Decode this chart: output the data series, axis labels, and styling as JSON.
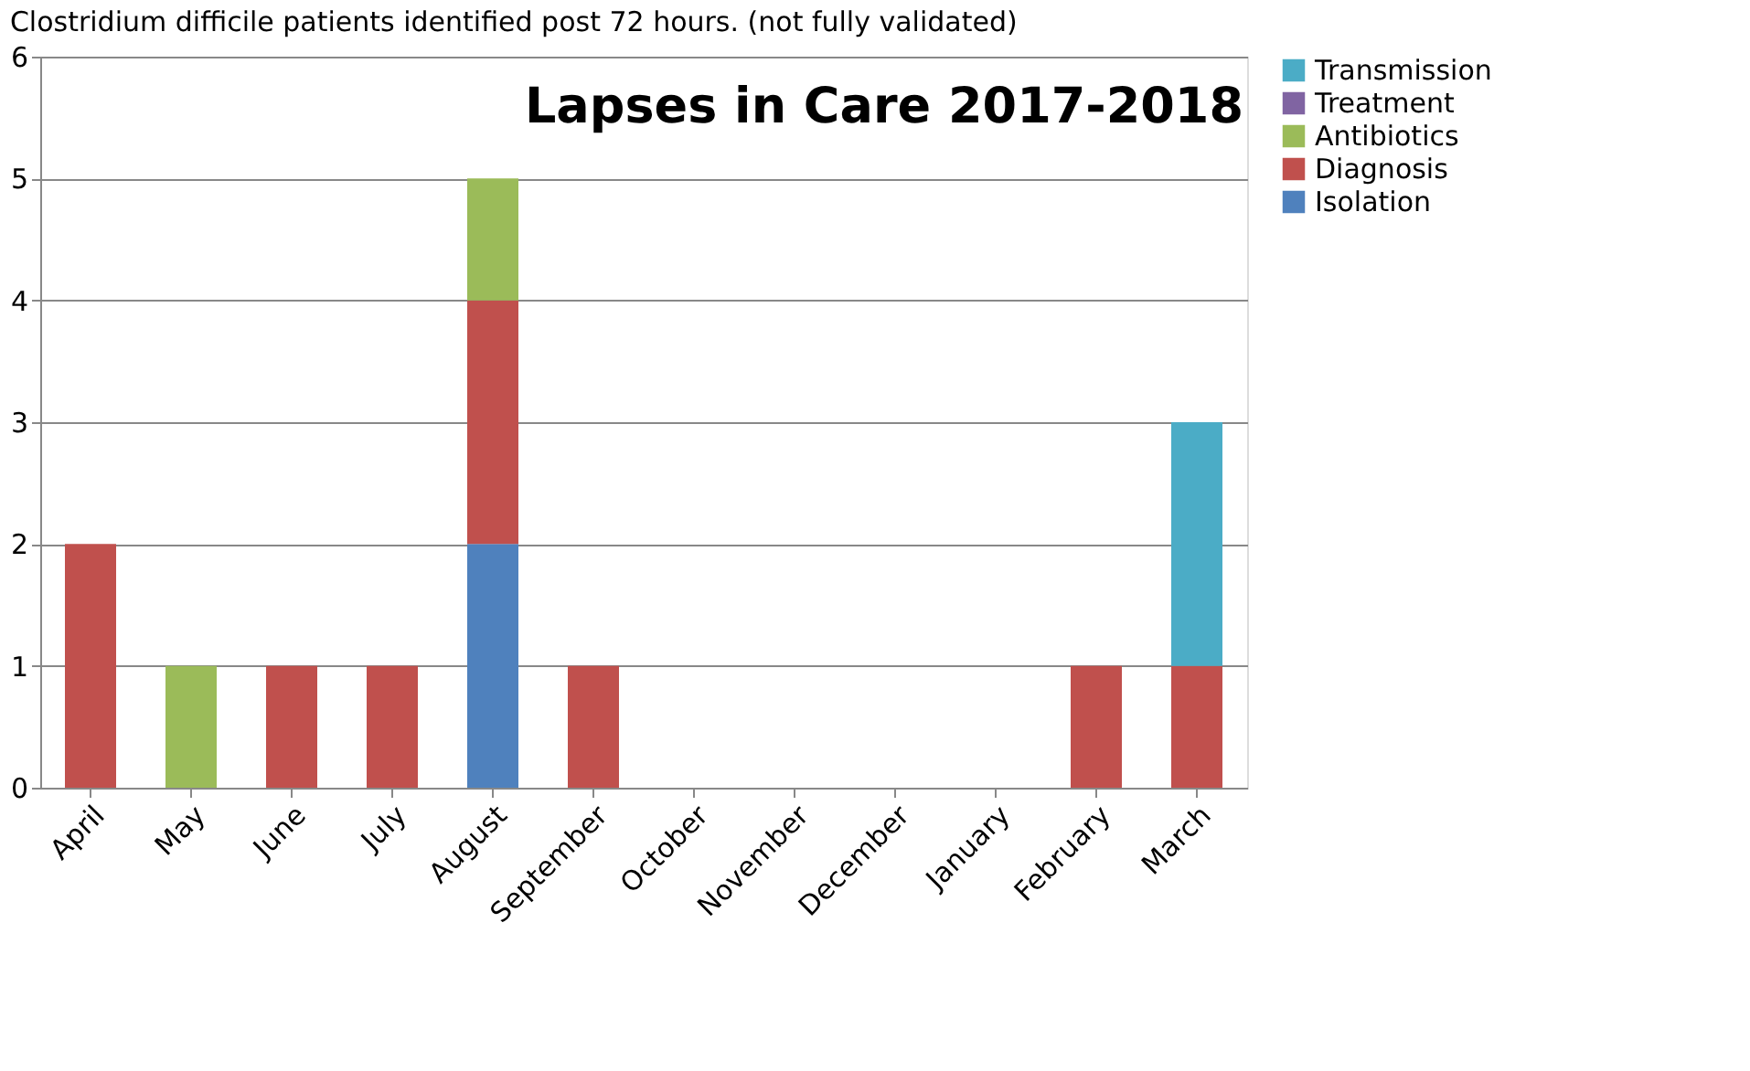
{
  "chart_data": {
    "type": "bar",
    "stacked": true,
    "title": "Lapses in Care 2017-2018",
    "annotations": [
      "Clostridium difficile patients identified post 72 hours. (not fully validated)"
    ],
    "categories": [
      "April",
      "May",
      "June",
      "July",
      "August",
      "September",
      "October",
      "November",
      "December",
      "January",
      "February",
      "March"
    ],
    "series": [
      {
        "name": "Isolation",
        "color": "#4f81bd",
        "values": [
          0,
          0,
          0,
          0,
          2,
          0,
          0,
          0,
          0,
          0,
          0,
          0
        ]
      },
      {
        "name": "Diagnosis",
        "color": "#c0504d",
        "values": [
          2,
          0,
          1,
          1,
          2,
          1,
          0,
          0,
          0,
          0,
          1,
          1
        ]
      },
      {
        "name": "Antibiotics",
        "color": "#9bbb59",
        "values": [
          0,
          1,
          0,
          0,
          1,
          0,
          0,
          0,
          0,
          0,
          0,
          0
        ]
      },
      {
        "name": "Treatment",
        "color": "#8064a2",
        "values": [
          0,
          0,
          0,
          0,
          0,
          0,
          0,
          0,
          0,
          0,
          0,
          0
        ]
      },
      {
        "name": "Transmission",
        "color": "#4bacc6",
        "values": [
          0,
          0,
          0,
          0,
          0,
          0,
          0,
          0,
          0,
          0,
          0,
          2
        ]
      }
    ],
    "ylim": [
      0,
      6
    ],
    "yticks": [
      0,
      1,
      2,
      3,
      4,
      5,
      6
    ],
    "grid": "y",
    "legend": "right"
  }
}
